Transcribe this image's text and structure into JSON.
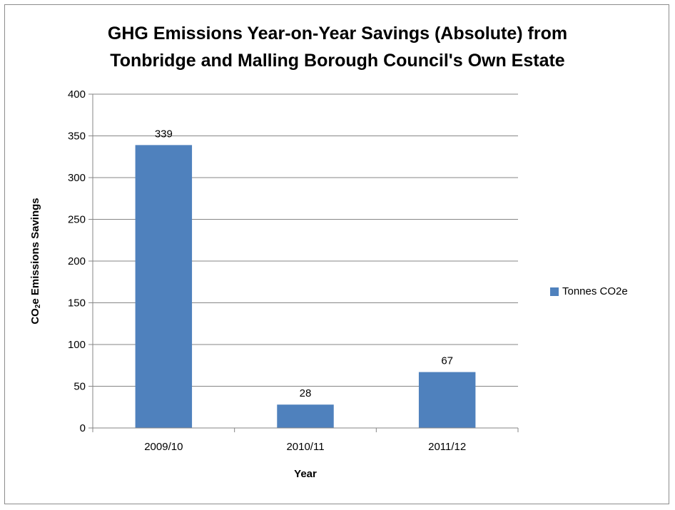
{
  "chart_data": {
    "type": "bar",
    "title_lines": [
      "GHG Emissions Year-on-Year Savings (Absolute) from",
      "Tonbridge and Malling Borough Council's Own Estate"
    ],
    "xlabel": "Year",
    "ylabel_prefix": "CO",
    "ylabel_sub": "2",
    "ylabel_suffix": "e Emissions Savings",
    "categories": [
      "2009/10",
      "2010/11",
      "2011/12"
    ],
    "series": [
      {
        "name": "Tonnes CO2e",
        "values": [
          339,
          28,
          67
        ],
        "color": "#4f81bd"
      }
    ],
    "data_labels": [
      "339",
      "28",
      "67"
    ],
    "ylim": [
      0,
      400
    ],
    "yticks": [
      0,
      50,
      100,
      150,
      200,
      250,
      300,
      350,
      400
    ],
    "grid": true,
    "legend_position": "right"
  }
}
